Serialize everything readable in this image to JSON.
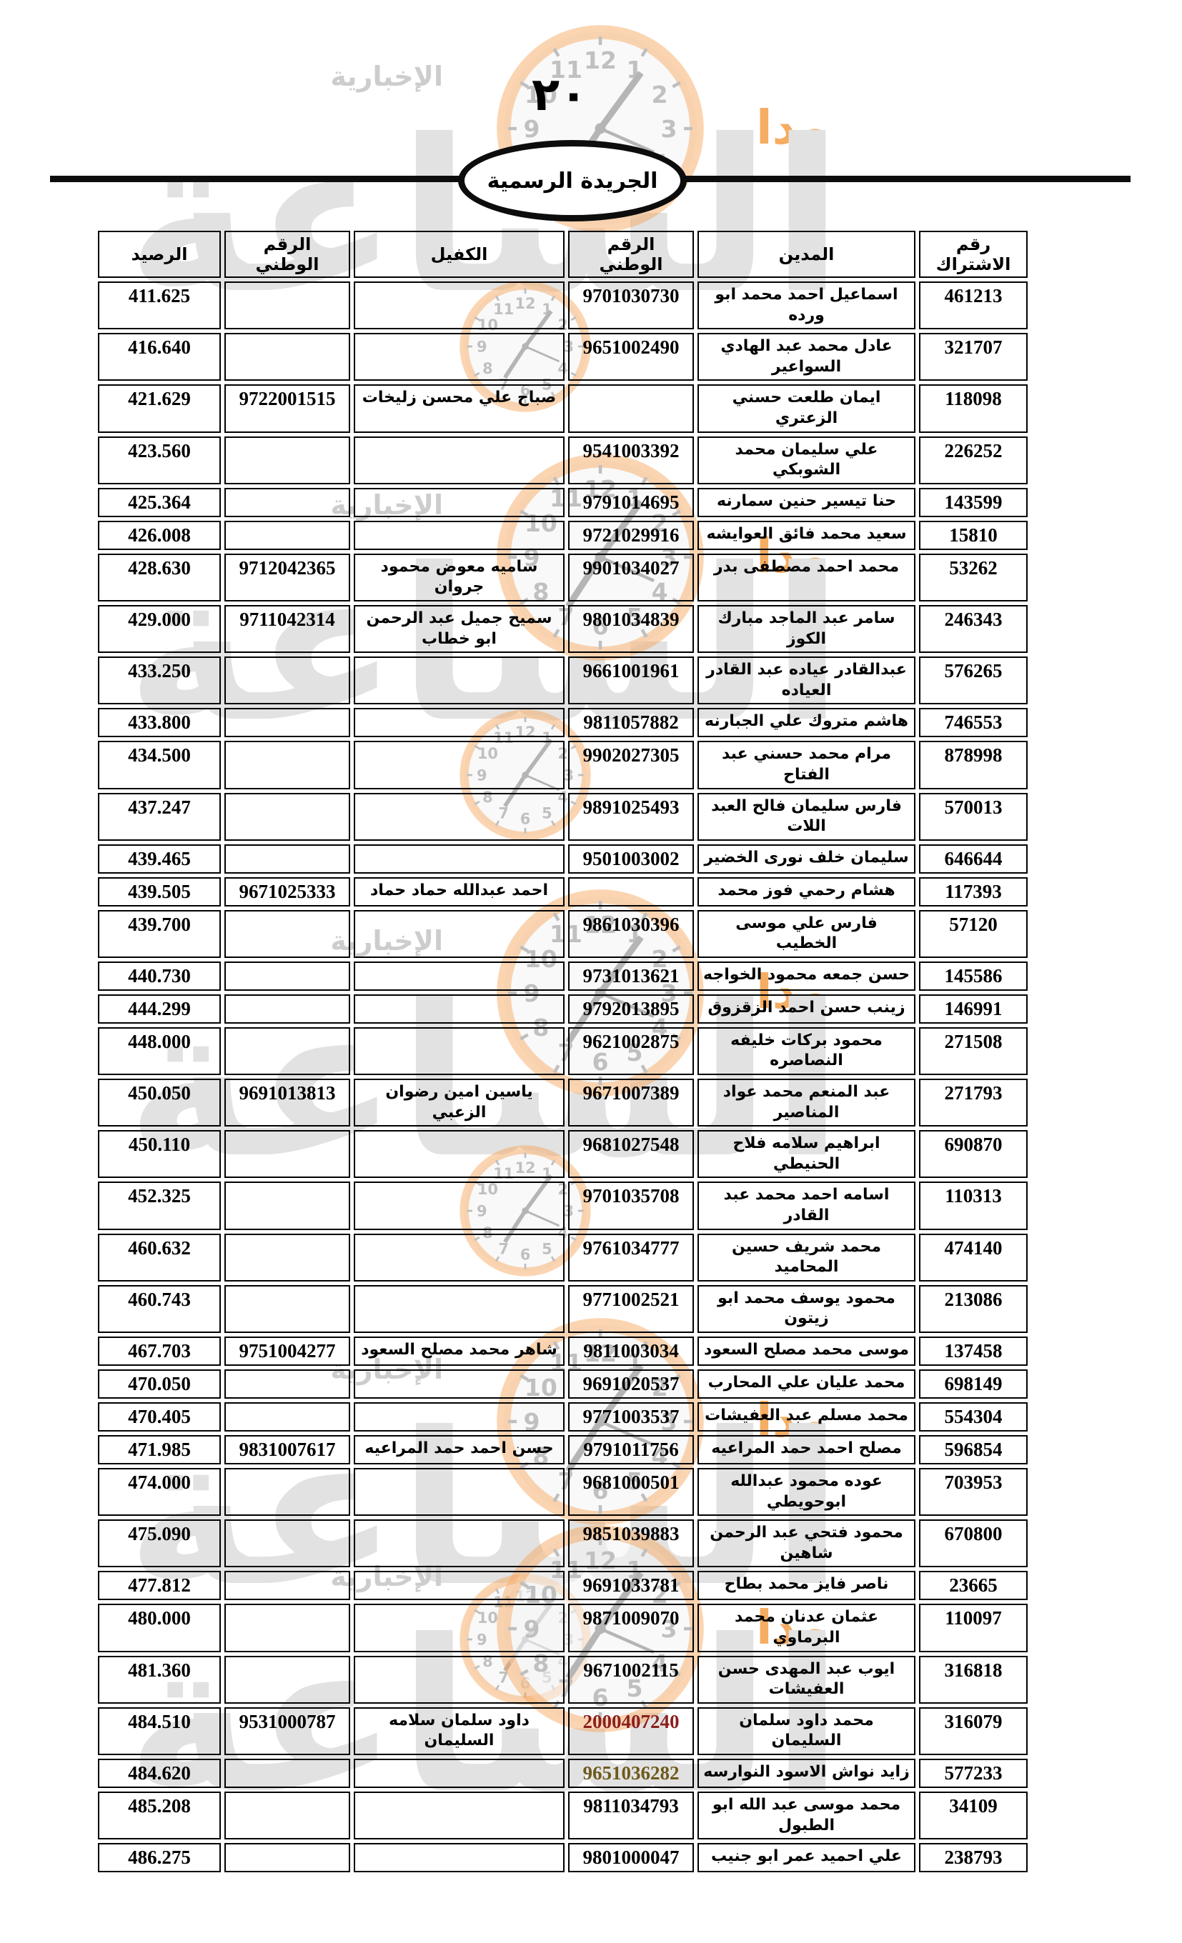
{
  "page": {
    "number": "٢٠",
    "banner_title": "الجريدة الرسمية"
  },
  "watermark": {
    "brand_line1": "مدار",
    "brand_line2": "الساعة",
    "brand_line3": "الإخبارية",
    "orange": "#f7a254",
    "grey": "#c0c0c0",
    "clock_numbers": [
      "12",
      "1",
      "2",
      "3",
      "4",
      "5",
      "6",
      "7",
      "8",
      "9",
      "10",
      "11"
    ]
  },
  "table": {
    "headers": {
      "subscription": "رقم الاشتراك",
      "debtor": "المدين",
      "debtor_national_id": "الرقم الوطني",
      "guarantor": "الكفيل",
      "guarantor_national_id": "الرقم الوطني",
      "balance": "الرصيد"
    },
    "rows": [
      {
        "subscription": "461213",
        "debtor": "اسماعيل احمد محمد ابو ورده",
        "debtor_national_id": "9701030730",
        "guarantor": "",
        "guarantor_national_id": "",
        "balance": "411.625"
      },
      {
        "subscription": "321707",
        "debtor": "عادل محمد عبد الهادي السواعير",
        "debtor_national_id": "9651002490",
        "guarantor": "",
        "guarantor_national_id": "",
        "balance": "416.640"
      },
      {
        "subscription": "118098",
        "debtor": "ايمان طلعت حسني الزعتري",
        "debtor_national_id": "",
        "guarantor": "صباح علي محسن زليخات",
        "guarantor_national_id": "9722001515",
        "balance": "421.629"
      },
      {
        "subscription": "226252",
        "debtor": "علي سليمان محمد الشوبكي",
        "debtor_national_id": "9541003392",
        "guarantor": "",
        "guarantor_national_id": "",
        "balance": "423.560"
      },
      {
        "subscription": "143599",
        "debtor": "حنا تيسير حنين سمارنه",
        "debtor_national_id": "9791014695",
        "guarantor": "",
        "guarantor_national_id": "",
        "balance": "425.364"
      },
      {
        "subscription": "15810",
        "debtor": "سعيد محمد فائق العوايشه",
        "debtor_national_id": "9721029916",
        "guarantor": "",
        "guarantor_national_id": "",
        "balance": "426.008"
      },
      {
        "subscription": "53262",
        "debtor": "محمد احمد مصطفى بدر",
        "debtor_national_id": "9901034027",
        "guarantor": "ساميه معوض محمود جروان",
        "guarantor_national_id": "9712042365",
        "balance": "428.630"
      },
      {
        "subscription": "246343",
        "debtor": "سامر عبد الماجد مبارك الكوز",
        "debtor_national_id": "9801034839",
        "guarantor": "سميح جميل عبد الرحمن ابو خطاب",
        "guarantor_national_id": "9711042314",
        "balance": "429.000"
      },
      {
        "subscription": "576265",
        "debtor": "عبدالقادر عياده عبد القادر العياده",
        "debtor_national_id": "9661001961",
        "guarantor": "",
        "guarantor_national_id": "",
        "balance": "433.250"
      },
      {
        "subscription": "746553",
        "debtor": "هاشم متروك علي الجبارنه",
        "debtor_national_id": "9811057882",
        "guarantor": "",
        "guarantor_national_id": "",
        "balance": "433.800"
      },
      {
        "subscription": "878998",
        "debtor": "مرام محمد حسني عبد الفتاح",
        "debtor_national_id": "9902027305",
        "guarantor": "",
        "guarantor_national_id": "",
        "balance": "434.500"
      },
      {
        "subscription": "570013",
        "debtor": "فارس سليمان فالح العبد اللات",
        "debtor_national_id": "9891025493",
        "guarantor": "",
        "guarantor_national_id": "",
        "balance": "437.247"
      },
      {
        "subscription": "646644",
        "debtor": "سليمان خلف نورى الخضير",
        "debtor_national_id": "9501003002",
        "guarantor": "",
        "guarantor_national_id": "",
        "balance": "439.465"
      },
      {
        "subscription": "117393",
        "debtor": "هشام رحمي فوز محمد",
        "debtor_national_id": "",
        "guarantor": "احمد عبدالله حماد حماد",
        "guarantor_national_id": "9671025333",
        "balance": "439.505"
      },
      {
        "subscription": "57120",
        "debtor": "فارس علي موسى الخطيب",
        "debtor_national_id": "9861030396",
        "guarantor": "",
        "guarantor_national_id": "",
        "balance": "439.700"
      },
      {
        "subscription": "145586",
        "debtor": "حسن جمعه محمود الخواجه",
        "debtor_national_id": "9731013621",
        "guarantor": "",
        "guarantor_national_id": "",
        "balance": "440.730"
      },
      {
        "subscription": "146991",
        "debtor": "زينب حسن احمد الزقزوق",
        "debtor_national_id": "9792013895",
        "guarantor": "",
        "guarantor_national_id": "",
        "balance": "444.299"
      },
      {
        "subscription": "271508",
        "debtor": "محمود بركات خليفه النصاصره",
        "debtor_national_id": "9621002875",
        "guarantor": "",
        "guarantor_national_id": "",
        "balance": "448.000"
      },
      {
        "subscription": "271793",
        "debtor": "عبد المنعم محمد عواد المناصير",
        "debtor_national_id": "9671007389",
        "guarantor": "ياسين امين رضوان الزعبي",
        "guarantor_national_id": "9691013813",
        "balance": "450.050"
      },
      {
        "subscription": "690870",
        "debtor": "ابراهيم سلامه فلاح الحنيطي",
        "debtor_national_id": "9681027548",
        "guarantor": "",
        "guarantor_national_id": "",
        "balance": "450.110"
      },
      {
        "subscription": "110313",
        "debtor": "اسامه احمد محمد عبد القادر",
        "debtor_national_id": "9701035708",
        "guarantor": "",
        "guarantor_national_id": "",
        "balance": "452.325"
      },
      {
        "subscription": "474140",
        "debtor": "محمد شريف حسين المحاميد",
        "debtor_national_id": "9761034777",
        "guarantor": "",
        "guarantor_national_id": "",
        "balance": "460.632"
      },
      {
        "subscription": "213086",
        "debtor": "محمود يوسف محمد ابو زيتون",
        "debtor_national_id": "9771002521",
        "guarantor": "",
        "guarantor_national_id": "",
        "balance": "460.743"
      },
      {
        "subscription": "137458",
        "debtor": "موسى محمد مصلح السعود",
        "debtor_national_id": "9811003034",
        "guarantor": "شاهر محمد مصلح السعود",
        "guarantor_national_id": "9751004277",
        "balance": "467.703"
      },
      {
        "subscription": "698149",
        "debtor": "محمد عليان علي المحارب",
        "debtor_national_id": "9691020537",
        "guarantor": "",
        "guarantor_national_id": "",
        "balance": "470.050"
      },
      {
        "subscription": "554304",
        "debtor": "محمد مسلم عبد العفيشات",
        "debtor_national_id": "9771003537",
        "guarantor": "",
        "guarantor_national_id": "",
        "balance": "470.405"
      },
      {
        "subscription": "596854",
        "debtor": "مصلح احمد حمد المراعيه",
        "debtor_national_id": "9791011756",
        "guarantor": "حسن احمد حمد المراعيه",
        "guarantor_national_id": "9831007617",
        "balance": "471.985"
      },
      {
        "subscription": "703953",
        "debtor": "عوده محمود عبدالله ابوحويطي",
        "debtor_national_id": "9681000501",
        "guarantor": "",
        "guarantor_national_id": "",
        "balance": "474.000"
      },
      {
        "subscription": "670800",
        "debtor": "محمود فتحي عبد الرحمن شاهين",
        "debtor_national_id": "9851039883",
        "guarantor": "",
        "guarantor_national_id": "",
        "balance": "475.090"
      },
      {
        "subscription": "23665",
        "debtor": "ناصر فايز محمد بطاح",
        "debtor_national_id": "9691033781",
        "guarantor": "",
        "guarantor_national_id": "",
        "balance": "477.812"
      },
      {
        "subscription": "110097",
        "debtor": "عثمان عدنان محمد البرماوي",
        "debtor_national_id": "9871009070",
        "guarantor": "",
        "guarantor_national_id": "",
        "balance": "480.000"
      },
      {
        "subscription": "316818",
        "debtor": "ايوب عبد المهدى حسن العفيشات",
        "debtor_national_id": "9671002115",
        "guarantor": "",
        "guarantor_national_id": "",
        "balance": "481.360"
      },
      {
        "subscription": "316079",
        "debtor": "محمد داود سلمان السليمان",
        "debtor_national_id": "2000407240",
        "guarantor": "داود سلمان سلامه السليمان",
        "guarantor_national_id": "9531000787",
        "balance": "484.510",
        "colors": {
          "debtor_national_id": "#8b1e1e"
        }
      },
      {
        "subscription": "577233",
        "debtor": "زايد نواش الاسود النوارسه",
        "debtor_national_id": "9651036282",
        "guarantor": "",
        "guarantor_national_id": "",
        "balance": "484.620",
        "colors": {
          "debtor_national_id": "#6e5a1c"
        }
      },
      {
        "subscription": "34109",
        "debtor": "محمد موسى عبد الله ابو الطبول",
        "debtor_national_id": "9811034793",
        "guarantor": "",
        "guarantor_national_id": "",
        "balance": "485.208"
      },
      {
        "subscription": "238793",
        "debtor": "علي احميد عمر ابو جنيب",
        "debtor_national_id": "9801000047",
        "guarantor": "",
        "guarantor_national_id": "",
        "balance": "486.275"
      }
    ]
  }
}
